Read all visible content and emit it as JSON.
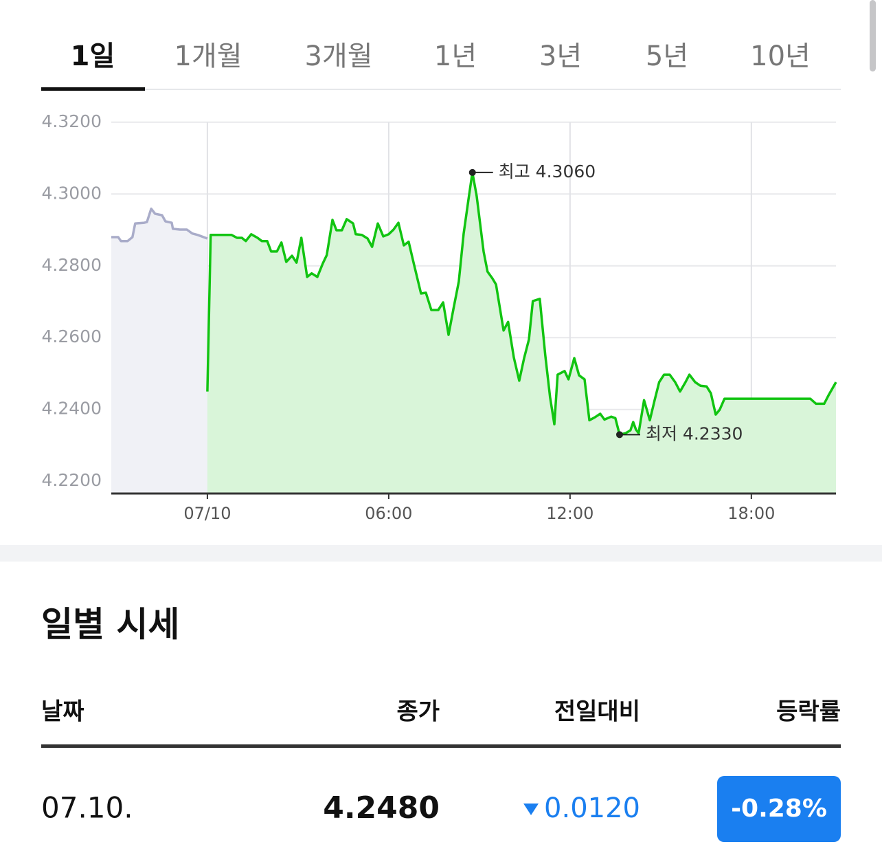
{
  "tabs": [
    "1일",
    "1개월",
    "3개월",
    "1년",
    "3년",
    "5년",
    "10년"
  ],
  "active_tab": 0,
  "chart_data": {
    "type": "line",
    "series": [
      {
        "color": "#a9acc9",
        "area_color": "#f0f1f6",
        "x": [
          -3.18,
          -2.95,
          -2.86,
          -2.64,
          -2.48,
          -2.39,
          -2.09,
          -2.0,
          -1.86,
          -1.73,
          -1.5,
          -1.39,
          -1.18,
          -1.14,
          -0.91,
          -0.68,
          -0.5,
          -0.32,
          0
        ],
        "values": [
          4.288,
          4.288,
          4.2869,
          4.2869,
          4.288,
          4.2918,
          4.292,
          4.2922,
          4.2959,
          4.2945,
          4.2941,
          4.2924,
          4.292,
          4.2903,
          4.2901,
          4.2901,
          4.289,
          4.2886,
          4.2876
        ]
      },
      {
        "color": "#11c411",
        "area_color": "#d9f5d9",
        "x": [
          0,
          0.11,
          0.41,
          0.8,
          0.98,
          1.14,
          1.27,
          1.45,
          1.66,
          1.8,
          1.98,
          2.11,
          2.3,
          2.45,
          2.61,
          2.8,
          2.95,
          3.11,
          3.3,
          3.45,
          3.64,
          3.82,
          3.95,
          4.14,
          4.27,
          4.45,
          4.61,
          4.82,
          4.91,
          5.11,
          5.3,
          5.45,
          5.64,
          5.82,
          6.0,
          6.16,
          6.32,
          6.5,
          6.66,
          6.84,
          7.07,
          7.23,
          7.41,
          7.64,
          7.8,
          7.98,
          8.14,
          8.32,
          8.48,
          8.64,
          8.77,
          8.91,
          9.14,
          9.27,
          9.43,
          9.55,
          9.8,
          9.95,
          10.14,
          10.32,
          10.48,
          10.64,
          10.77,
          11.0,
          11.18,
          11.34,
          11.48,
          11.59,
          11.82,
          11.95,
          12.14,
          12.3,
          12.48,
          12.64,
          12.82,
          13.0,
          13.14,
          13.36,
          13.5,
          13.64,
          13.84,
          14.0,
          14.09,
          14.18,
          14.27,
          14.45,
          14.64,
          14.8,
          14.95,
          15.11,
          15.3,
          15.48,
          15.64,
          15.82,
          15.95,
          16.14,
          16.32,
          16.52,
          16.66,
          16.82,
          16.95,
          17.11,
          17.45,
          17.8,
          19.95,
          20.14,
          20.41,
          20.55,
          20.8
        ],
        "values": [
          4.245,
          4.2886,
          4.2886,
          4.2886,
          4.2878,
          4.2878,
          4.2869,
          4.2888,
          4.2878,
          4.2869,
          4.2869,
          4.284,
          4.284,
          4.2865,
          4.2811,
          4.2828,
          4.2809,
          4.2878,
          4.2769,
          4.2779,
          4.2769,
          4.2807,
          4.283,
          4.2928,
          4.2899,
          4.2899,
          4.293,
          4.2918,
          4.2888,
          4.2886,
          4.2876,
          4.2853,
          4.2918,
          4.2882,
          4.2888,
          4.2901,
          4.292,
          4.2857,
          4.2867,
          4.2803,
          4.2723,
          4.2725,
          4.2677,
          4.2677,
          4.2698,
          4.2608,
          4.2679,
          4.2756,
          4.289,
          4.2985,
          4.306,
          4.2995,
          4.284,
          4.2784,
          4.2765,
          4.2748,
          4.262,
          4.2644,
          4.2545,
          4.248,
          4.2543,
          4.2595,
          4.2702,
          4.2708,
          4.2551,
          4.2434,
          4.2359,
          4.2497,
          4.2507,
          4.2484,
          4.2543,
          4.2495,
          4.2484,
          4.237,
          4.2378,
          4.2388,
          4.2372,
          4.238,
          4.2376,
          4.233,
          4.2334,
          4.2342,
          4.2365,
          4.2344,
          4.2334,
          4.2426,
          4.237,
          4.2426,
          4.2476,
          4.2497,
          4.2497,
          4.2476,
          4.245,
          4.2476,
          4.2497,
          4.2476,
          4.2466,
          4.2464,
          4.2445,
          4.2386,
          4.2399,
          4.243,
          4.243,
          4.243,
          4.243,
          4.2416,
          4.2416,
          4.2439,
          4.2476
        ]
      }
    ],
    "xlim": [
      -3.18,
      20.8
    ],
    "xticks": [
      {
        "value": 0,
        "label": "07/10"
      },
      {
        "value": 6,
        "label": "06:00"
      },
      {
        "value": 12,
        "label": "12:00"
      },
      {
        "value": 18,
        "label": "18:00"
      }
    ],
    "ylim": [
      4.2166,
      4.3234
    ],
    "yticks": [
      {
        "value": 4.22,
        "label": "4.2200"
      },
      {
        "value": 4.24,
        "label": "4.2400"
      },
      {
        "value": 4.26,
        "label": "4.2600"
      },
      {
        "value": 4.28,
        "label": "4.2800"
      },
      {
        "value": 4.3,
        "label": "4.3000"
      },
      {
        "value": 4.32,
        "label": "4.3200"
      }
    ],
    "grid": true,
    "annotations": [
      {
        "text": "최고 4.3060",
        "x": 8.77,
        "y": 4.306
      },
      {
        "text": "최저 4.2330",
        "x": 13.64,
        "y": 4.233
      }
    ]
  },
  "section_title": "일별 시세",
  "table": {
    "headers": [
      "날짜",
      "종가",
      "전일대비",
      "등락률"
    ],
    "rows": [
      [
        "07.10.",
        "4.2480",
        "0.0120",
        "-0.28%"
      ]
    ]
  }
}
